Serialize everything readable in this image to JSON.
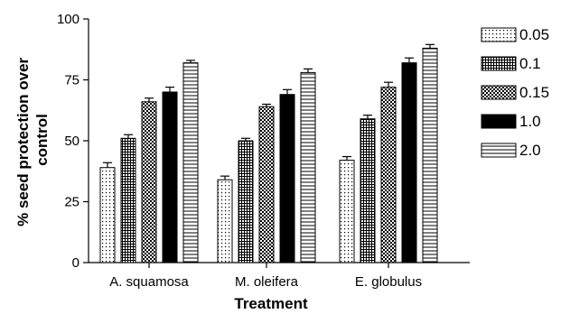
{
  "chart_data": {
    "type": "bar",
    "title": "",
    "xlabel": "Treatment",
    "ylabel": "% seed protection over control",
    "ylim": [
      0,
      100
    ],
    "yticks": [
      "0",
      "25",
      "50",
      "75",
      "100"
    ],
    "categories": [
      "A. squamosa",
      "M. oleifera",
      "E. globulus"
    ],
    "series": [
      {
        "name": "0.05",
        "values": [
          39,
          34,
          42
        ],
        "errors": [
          2,
          1.5,
          1.5
        ],
        "pattern": "dots"
      },
      {
        "name": "0.1",
        "values": [
          51,
          50,
          59
        ],
        "errors": [
          1.5,
          1,
          1.5
        ],
        "pattern": "fine-grid"
      },
      {
        "name": "0.15",
        "values": [
          66,
          64,
          72
        ],
        "errors": [
          1.5,
          1,
          2
        ],
        "pattern": "checker"
      },
      {
        "name": "1.0",
        "values": [
          70,
          69,
          82
        ],
        "errors": [
          2,
          2,
          2
        ],
        "pattern": "solid"
      },
      {
        "name": "2.0",
        "values": [
          82,
          78,
          88
        ],
        "errors": [
          1,
          1.5,
          1.5
        ],
        "pattern": "horizontal-lines"
      }
    ],
    "grid": false,
    "legend_position": "right"
  }
}
